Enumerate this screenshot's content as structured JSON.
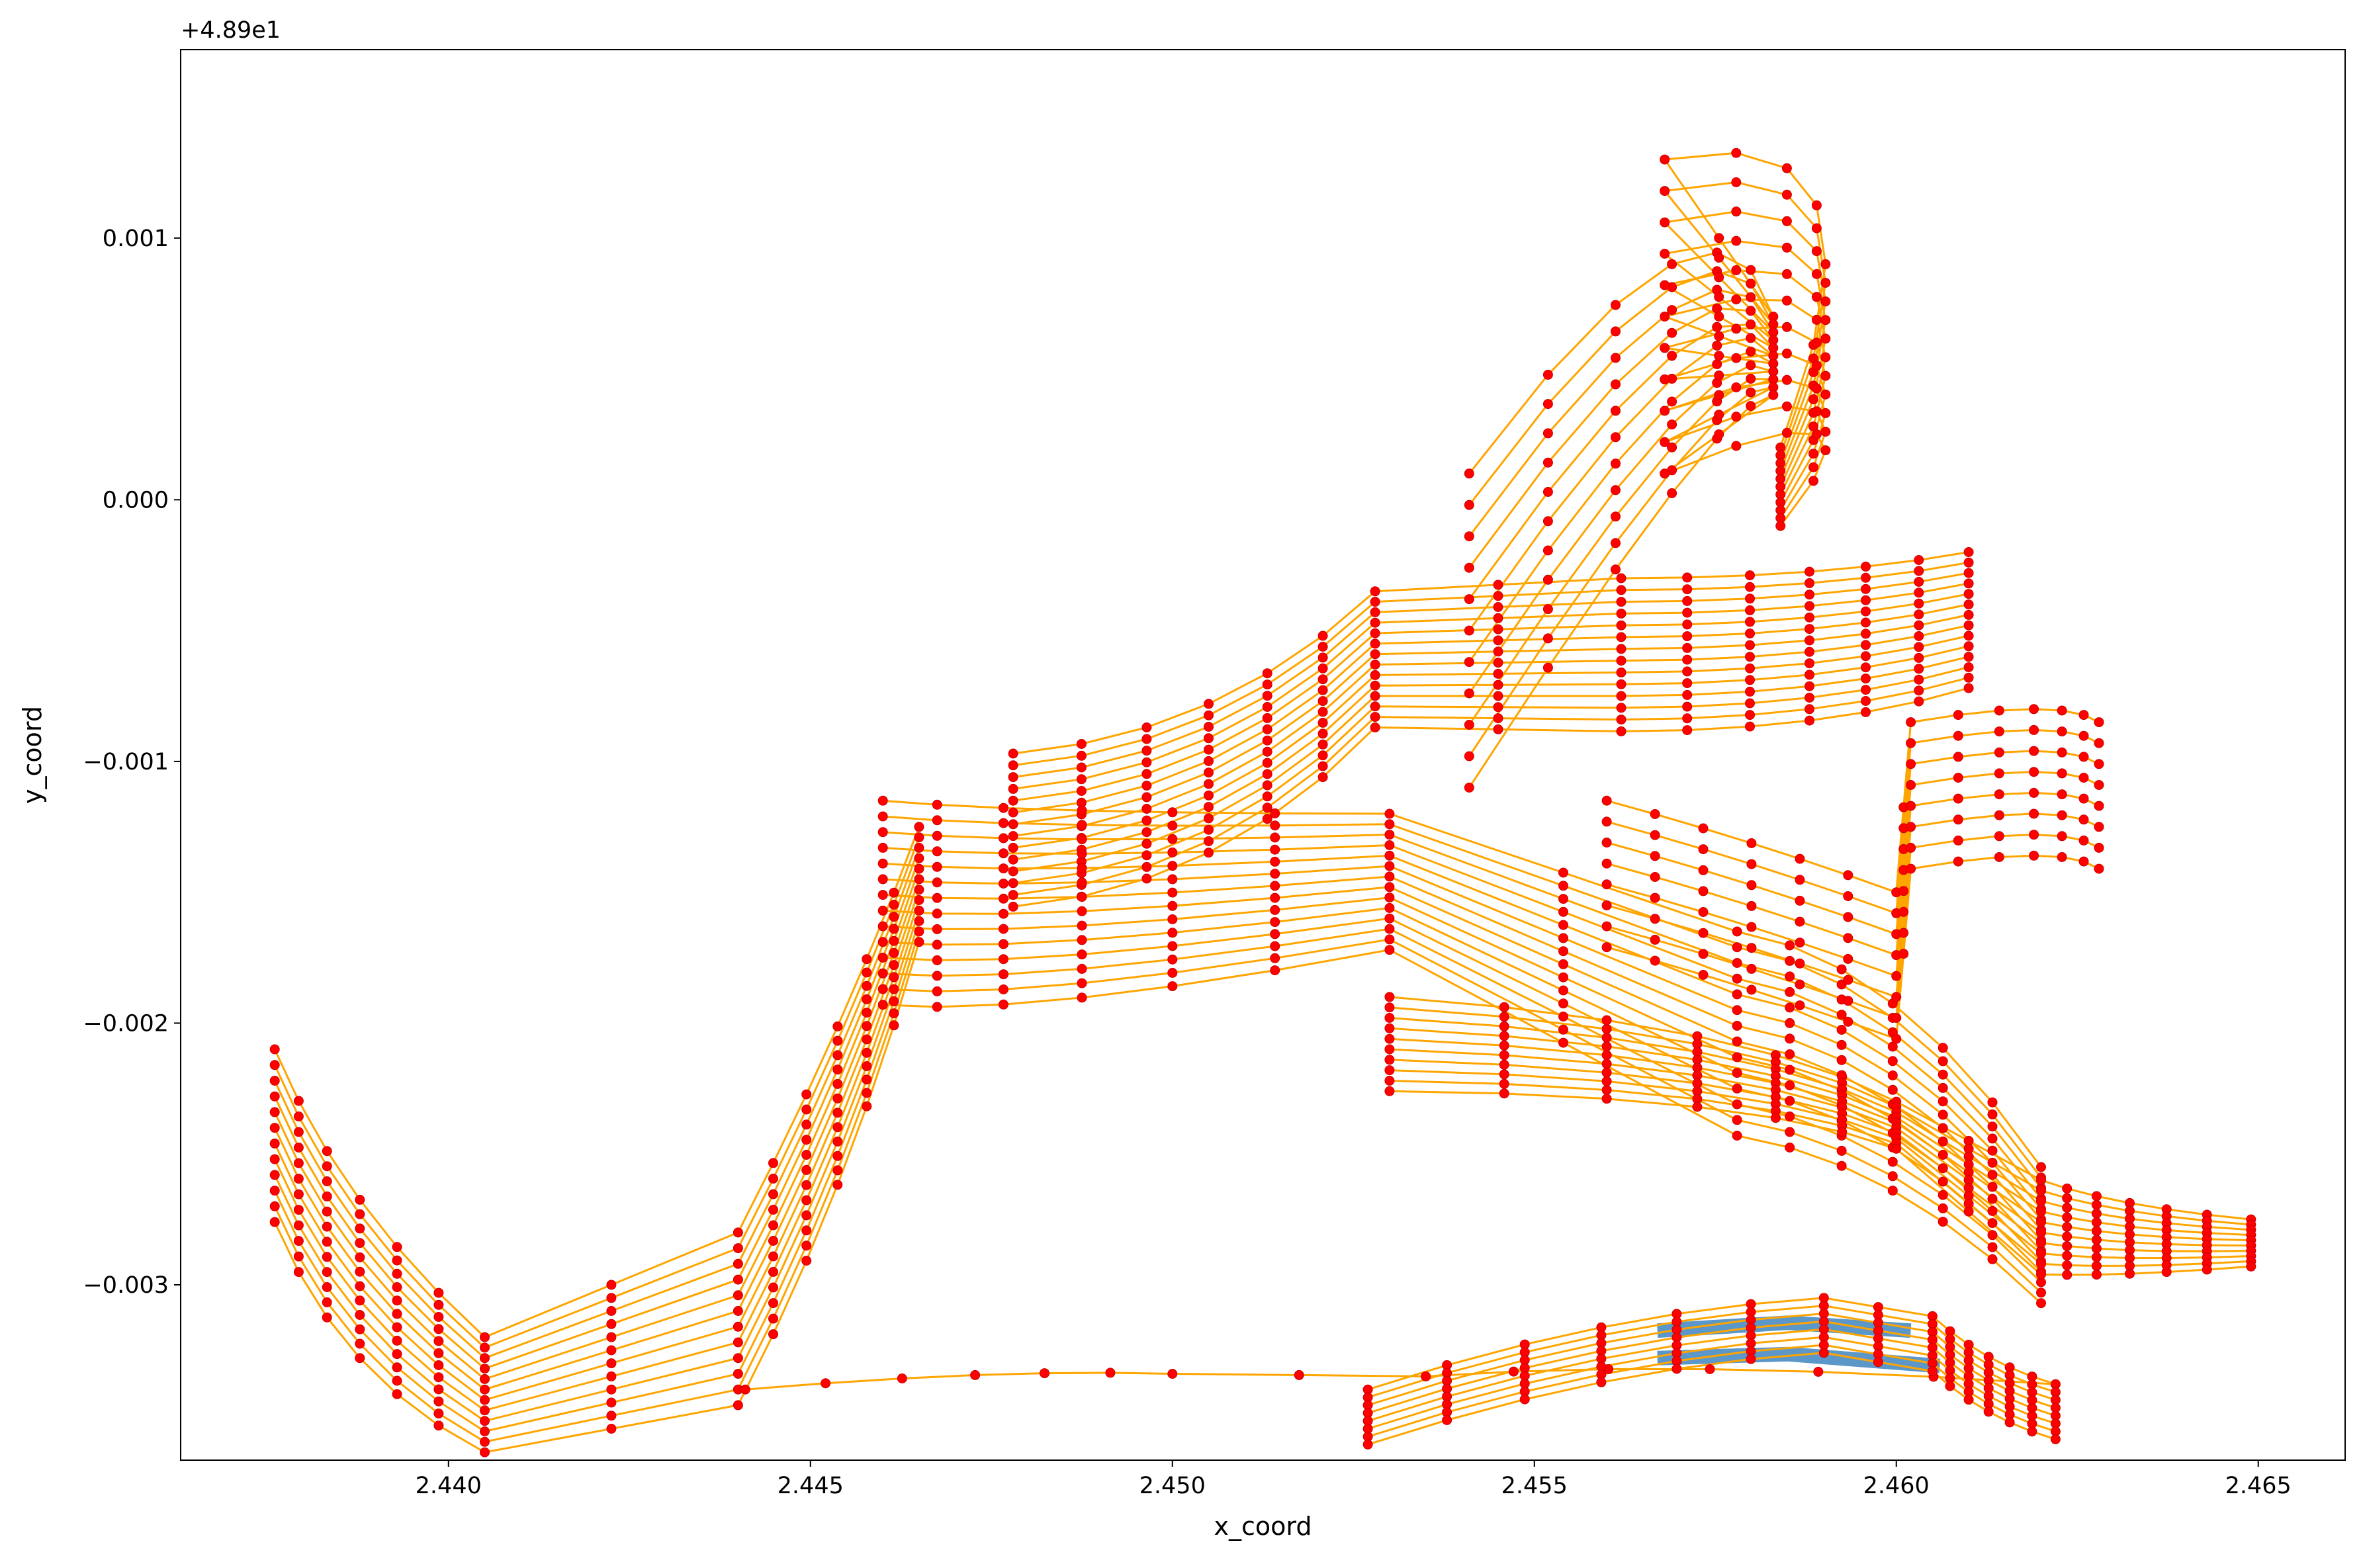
{
  "chart_data": {
    "type": "line",
    "title": "",
    "xlabel": "x_coord",
    "ylabel": "y_coord",
    "y_offset_text": "+4.89e1",
    "xlim": [
      2.4363,
      2.4662
    ],
    "ylim": [
      -0.00367,
      0.00172
    ],
    "x_ticks": [
      2.44,
      2.445,
      2.45,
      2.455,
      2.46,
      2.465
    ],
    "x_tick_labels": [
      "2.440",
      "2.445",
      "2.450",
      "2.455",
      "2.460",
      "2.465"
    ],
    "y_ticks": [
      0.001,
      0.0,
      -0.001,
      -0.002,
      -0.003
    ],
    "y_tick_labels": [
      "0.001",
      "0.000",
      "−0.001",
      "−0.002",
      "−0.003"
    ],
    "grid": false,
    "colors": {
      "line": "#ffa500",
      "marker": "#ff0000",
      "marker_edge": "#cc0000",
      "band": "#5b97c9",
      "axes": "#000000"
    },
    "series_groups": [
      {
        "id": "north_fan",
        "count": 11,
        "start": [
          [
            2.4541,
            0.0001
          ],
          [
            2.4576,
            0.0014
          ],
          [
            2.4583,
            0.0007
          ]
        ],
        "end": [
          [
            2.4568,
            0.0013
          ],
          [
            2.4602,
            0.0015
          ],
          [
            2.4584,
            0.0002
          ]
        ],
        "dy": [
          -0.00012,
          -0.0001,
          -3e-05
        ]
      },
      {
        "id": "upper_lanes",
        "count": 14,
        "start": [
          [
            2.4478,
            -0.00097
          ],
          [
            2.4507,
            -0.0009
          ],
          [
            2.4528,
            -0.00035
          ]
        ],
        "end": [
          [
            2.4562,
            -0.0003
          ],
          [
            2.459,
            -0.0003
          ],
          [
            2.461,
            -0.0002
          ]
        ],
        "dy": [
          -4.5e-05,
          -4.5e-05,
          -4e-05
        ]
      },
      {
        "id": "middle_lanes",
        "count": 14,
        "start": [
          [
            2.446,
            -0.00115
          ],
          [
            2.448,
            -0.0012
          ],
          [
            2.453,
            -0.0012
          ]
        ],
        "end": [
          [
            2.4578,
            -0.00165
          ],
          [
            2.46,
            -0.00175
          ],
          [
            2.462,
            -0.00255
          ]
        ],
        "dy": [
          -6e-05,
          -6e-05,
          -4e-05
        ]
      },
      {
        "id": "long_diagonals",
        "count": 8,
        "start": [
          [
            2.456,
            -0.00115
          ],
          [
            2.458,
            -0.0013
          ],
          [
            2.46,
            -0.0015
          ]
        ],
        "end": [
          [
            2.4602,
            -0.00085
          ],
          [
            2.4623,
            -0.00075
          ],
          [
            2.4628,
            -0.00085
          ]
        ],
        "dy": [
          -8e-05,
          -8e-05,
          -8e-05
        ]
      },
      {
        "id": "southwest_curves",
        "count": 12,
        "start": [
          [
            2.4376,
            -0.0021
          ],
          [
            2.4385,
            -0.0027
          ],
          [
            2.4405,
            -0.0032
          ]
        ],
        "end": [
          [
            2.444,
            -0.0028
          ],
          [
            2.4455,
            -0.002
          ],
          [
            2.4465,
            -0.00125
          ]
        ],
        "dy": [
          -6e-05,
          -6e-05,
          -4e-05
        ]
      },
      {
        "id": "lower_track",
        "count": 1,
        "start": [
          [
            2.4441,
            -0.0034
          ],
          [
            2.4475,
            -0.00332
          ],
          [
            2.45,
            -0.00334
          ]
        ],
        "end": [
          [
            2.4535,
            -0.00335
          ],
          [
            2.457,
            -0.00328
          ],
          [
            2.4622,
            -0.00338
          ]
        ],
        "dy": [
          0,
          0,
          0
        ]
      },
      {
        "id": "southeast_spread",
        "count": 10,
        "start": [
          [
            2.453,
            -0.0019
          ],
          [
            2.458,
            -0.002
          ],
          [
            2.46,
            -0.0023
          ]
        ],
        "end": [
          [
            2.462,
            -0.0026
          ],
          [
            2.463,
            -0.0027
          ],
          [
            2.4649,
            -0.00275
          ]
        ],
        "dy": [
          -4e-05,
          -3e-05,
          -2e-05
        ]
      },
      {
        "id": "southern_arcs",
        "count": 8,
        "start": [
          [
            2.4527,
            -0.0034
          ],
          [
            2.456,
            -0.0031
          ],
          [
            2.459,
            -0.00305
          ]
        ],
        "end": [
          [
            2.4605,
            -0.00312
          ],
          [
            2.4612,
            -0.0033
          ],
          [
            2.4622,
            -0.00338
          ]
        ],
        "dy": [
          -3e-05,
          -3e-05,
          -3e-05
        ]
      }
    ],
    "highlight_bands": [
      {
        "x": [
          2.4567,
          2.4585,
          2.4602
        ],
        "y": [
          -0.003175,
          -0.003145,
          -0.003175
        ]
      },
      {
        "x": [
          2.4567,
          2.4585,
          2.4606
        ],
        "y": [
          -0.00328,
          -0.003265,
          -0.00331
        ]
      }
    ]
  }
}
